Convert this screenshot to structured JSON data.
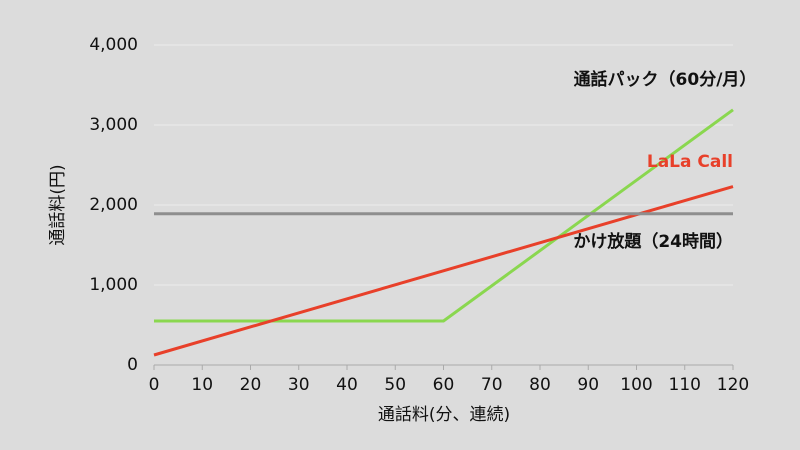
{
  "chart_data": {
    "type": "line",
    "x_label": "通話料(分、連続)",
    "y_label": "通話料(円)",
    "xlim": [
      0,
      120
    ],
    "xticks": [
      0,
      10,
      20,
      30,
      40,
      50,
      60,
      70,
      80,
      90,
      100,
      110,
      120
    ],
    "ylim": [
      0,
      4000
    ],
    "yticks": [
      0,
      {
        "value": 1000,
        "label": "1,000"
      },
      {
        "value": 2000,
        "label": "2,000"
      },
      {
        "value": 3000,
        "label": "3,000"
      },
      {
        "value": 4000,
        "label": "4,000"
      }
    ],
    "grid": true,
    "series": [
      {
        "name": "通話パック（60分/月）",
        "color": "#8ad74f",
        "x": [
          0,
          60,
          120
        ],
        "values": [
          550,
          550,
          3190
        ]
      },
      {
        "name": "LaLa Call",
        "color": "#e8402a",
        "x": [
          0,
          120
        ],
        "values": [
          125,
          2230
        ]
      },
      {
        "name": "かけ放題（24時間）",
        "color": "#8e8e8e",
        "x": [
          0,
          120
        ],
        "values": [
          1890,
          1890
        ]
      }
    ]
  }
}
